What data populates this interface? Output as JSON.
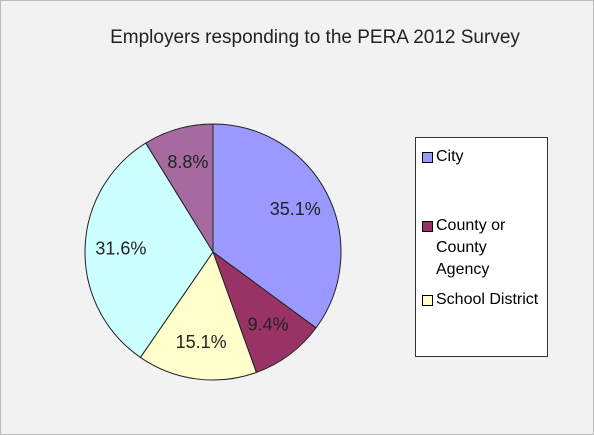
{
  "chart_data": {
    "type": "pie",
    "title": "Employers responding to the PERA 2012 Survey",
    "categories": [
      "City",
      "County or County Agency",
      "School District",
      null,
      null
    ],
    "values": [
      35.1,
      9.4,
      15.1,
      31.6,
      8.8
    ],
    "value_labels": [
      "35.1%",
      "9.4%",
      "15.1%",
      "31.6%",
      "8.8%"
    ],
    "colors": [
      "#9999ff",
      "#993366",
      "#ffffcc",
      "#ccffff",
      "#a56aa0"
    ],
    "legend": "right"
  }
}
